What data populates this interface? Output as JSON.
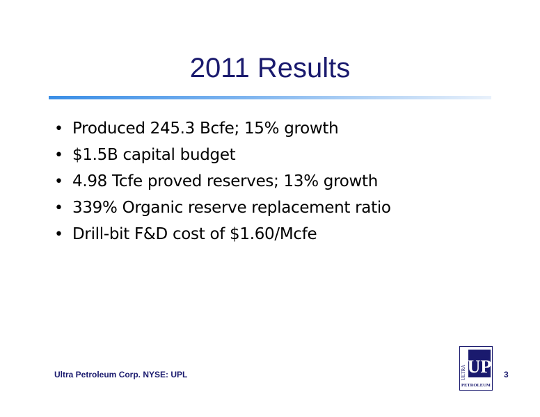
{
  "slide": {
    "title": "2011 Results",
    "bullets": [
      "Produced 245.3 Bcfe; 15% growth",
      "$1.5B capital budget",
      "4.98 Tcfe proved reserves; 13% growth",
      "339% Organic reserve replacement ratio",
      "Drill-bit F&D cost of $1.60/Mcfe"
    ],
    "bullet_symbol": "•",
    "footer": "Ultra Petroleum Corp. NYSE: UPL",
    "page_number": "3",
    "logo": {
      "top_text": "ULTRA",
      "main_text": "UP",
      "bottom_text": "PETROLEUM",
      "color": "#1a1a6e"
    },
    "colors": {
      "title": "#1a1a6e",
      "rule_start": "#3a8ee6",
      "rule_end": "#e9f1fb",
      "footer": "#1a1a6e"
    }
  }
}
